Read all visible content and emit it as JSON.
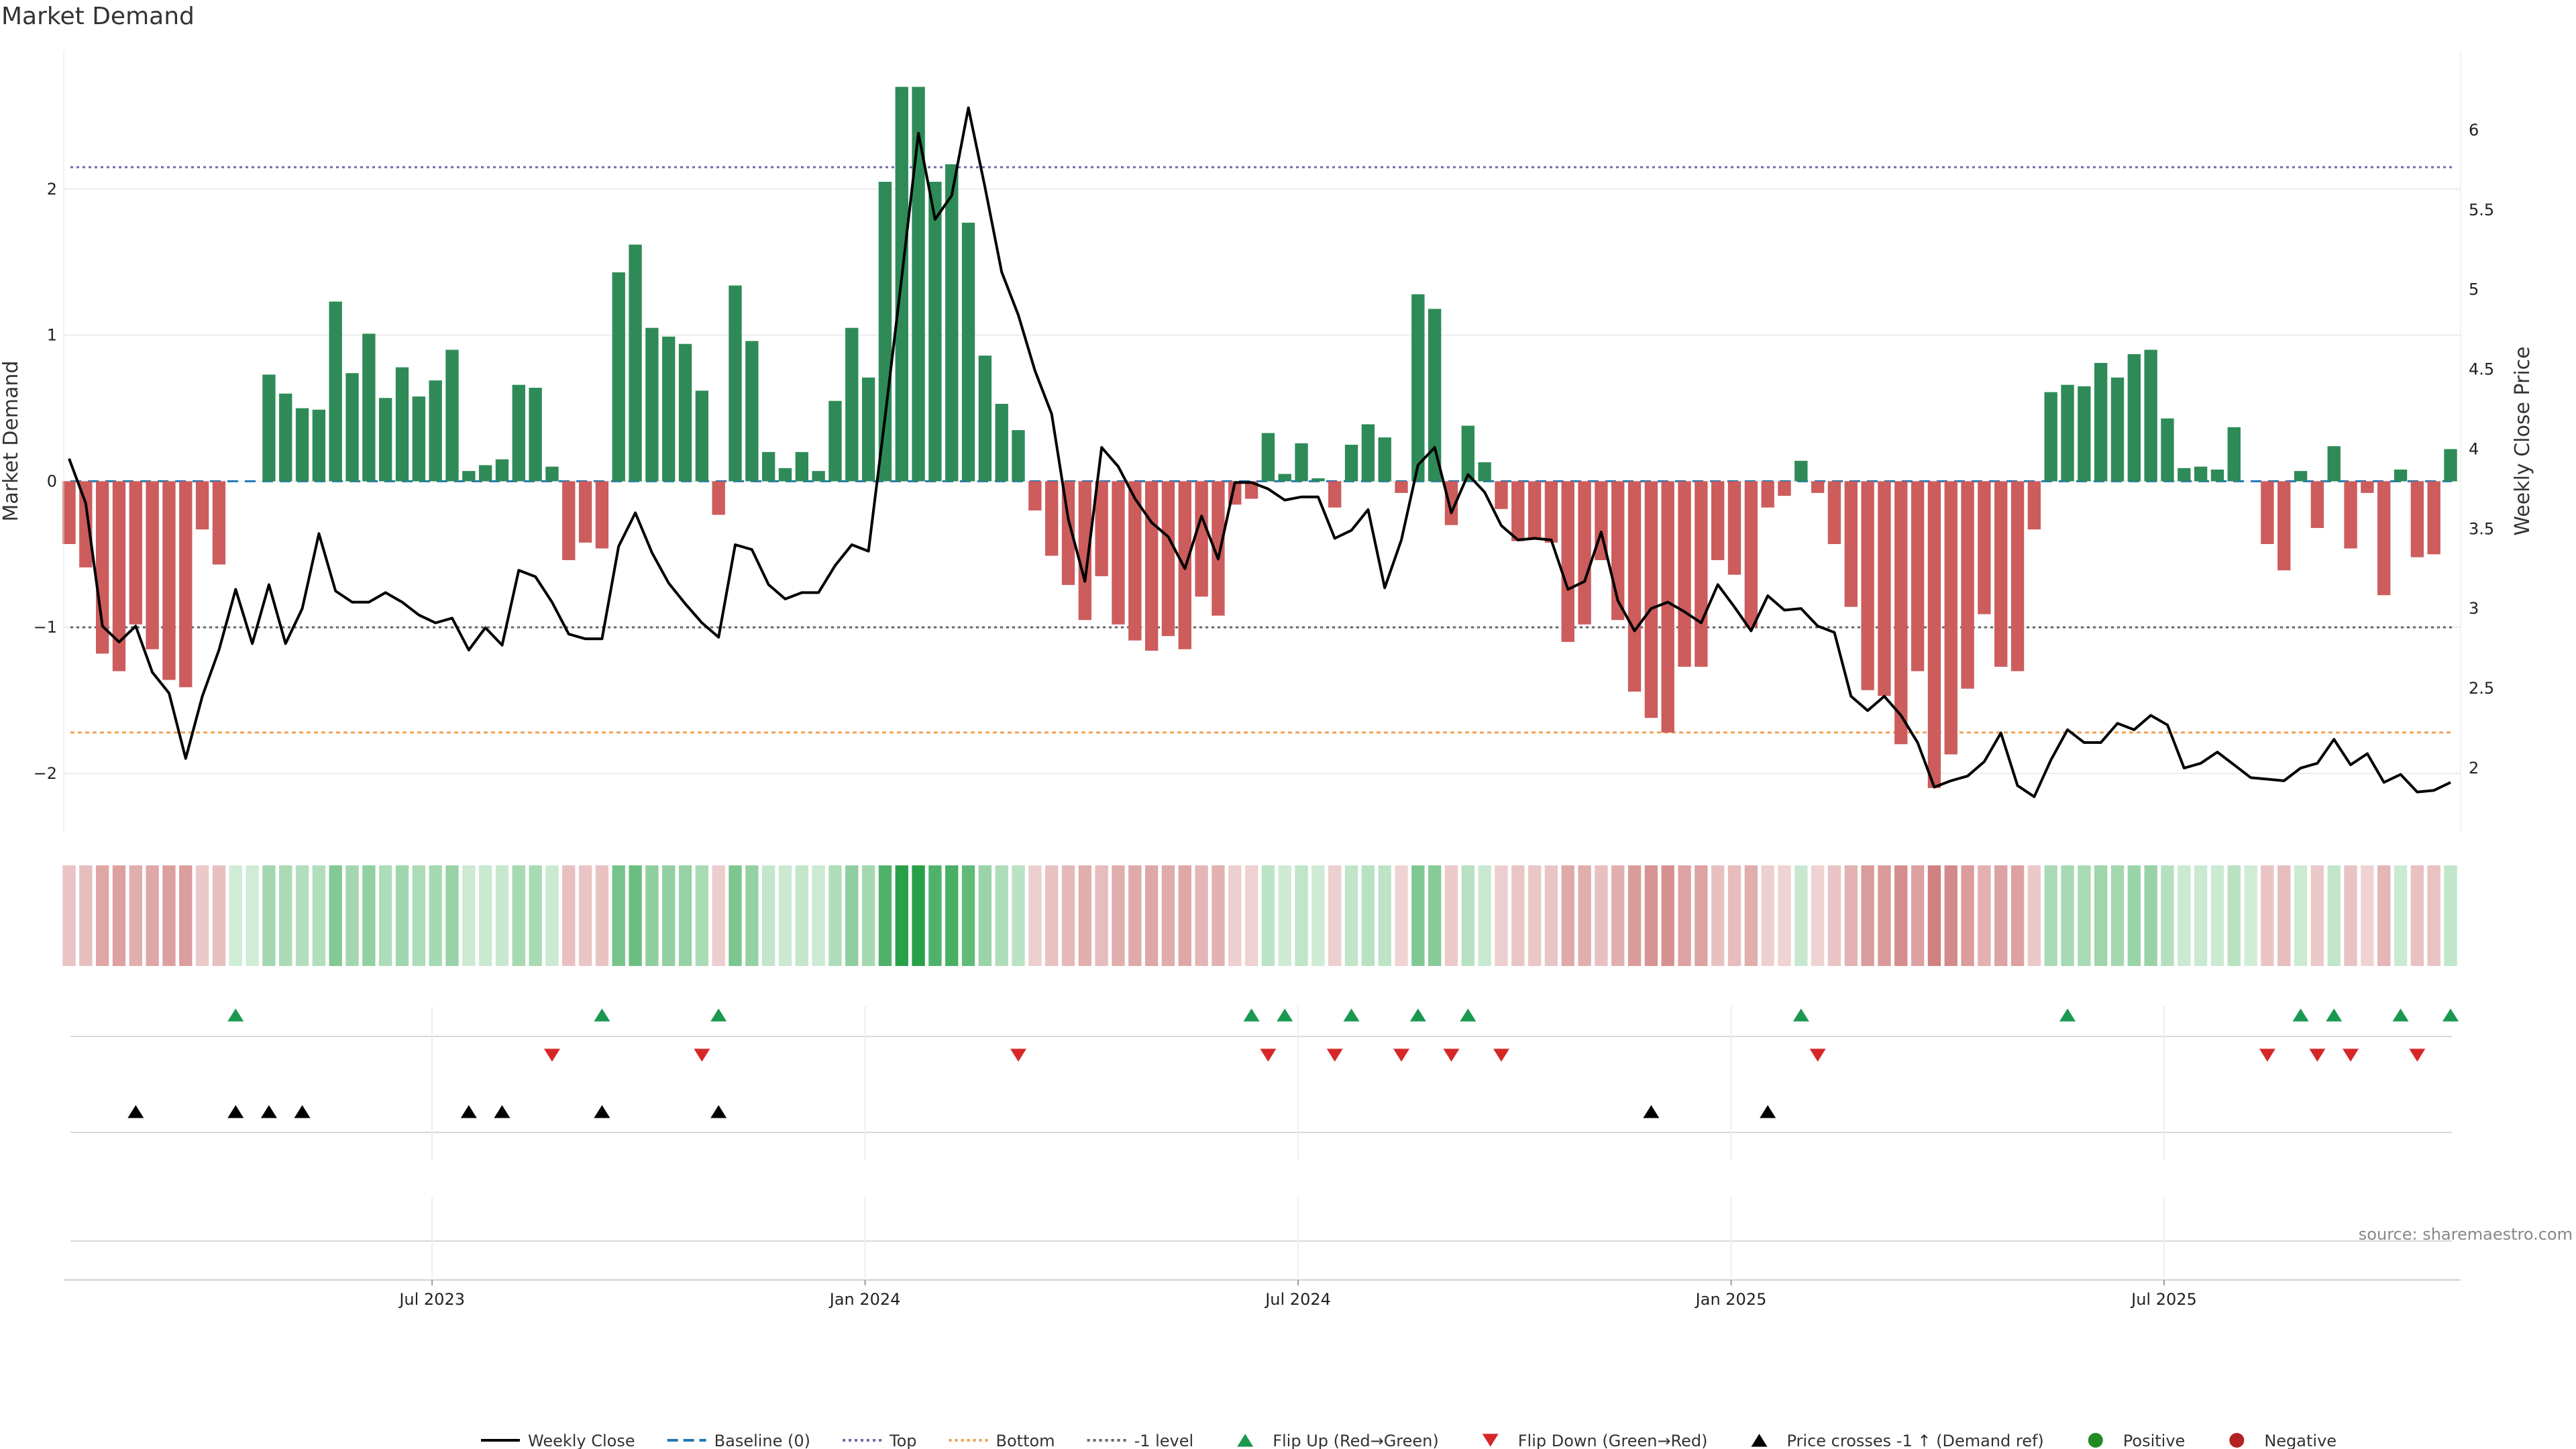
{
  "chart_data": {
    "type": "bar",
    "title": "Market Demand",
    "ylabel_left": "Market Demand",
    "ylabel_right": "Weekly Close Price",
    "ylim_left": [
      -2.4,
      2.95
    ],
    "ylim_right": [
      1.6,
      6.5
    ],
    "y_ticks_left": [
      {
        "value": 2,
        "label": "2"
      },
      {
        "value": 1,
        "label": "1"
      },
      {
        "value": 0,
        "label": "0"
      },
      {
        "value": -1,
        "label": "−1"
      },
      {
        "value": -2,
        "label": "−2"
      }
    ],
    "y_ticks_right": [
      {
        "value": 6,
        "label": "6"
      },
      {
        "value": 5.5,
        "label": "5.5"
      },
      {
        "value": 5,
        "label": "5"
      },
      {
        "value": 4.5,
        "label": "4.5"
      },
      {
        "value": 4,
        "label": "4"
      },
      {
        "value": 3.5,
        "label": "3.5"
      },
      {
        "value": 3,
        "label": "3"
      },
      {
        "value": 2.5,
        "label": "2.5"
      },
      {
        "value": 2,
        "label": "2"
      }
    ],
    "x_ticks": [
      {
        "index": 22,
        "label": "Jul 2023"
      },
      {
        "index": 48,
        "label": "Jan 2024"
      },
      {
        "index": 74,
        "label": "Jul 2024"
      },
      {
        "index": 100,
        "label": "Jan 2025"
      },
      {
        "index": 126,
        "label": "Jul 2025"
      }
    ],
    "reference_lines": {
      "top": 2.15,
      "bottom": -1.72,
      "minus_one": -1.0,
      "baseline": 0
    },
    "colors": {
      "positive": "#2e8b57",
      "negative": "#cd5c5c",
      "price": "#000000",
      "flip_up": "#1a9850",
      "flip_down": "#d62728",
      "cross": "#000000",
      "top_line": "#6b6bb0",
      "bottom_line": "#f0a050",
      "minus_one_line": "#666666",
      "baseline_line": "#1f77b4"
    },
    "demand": [
      -0.43,
      -0.59,
      -1.18,
      -1.3,
      -0.98,
      -1.15,
      -1.36,
      -1.41,
      -0.33,
      -0.57,
      0.0,
      0.0,
      0.73,
      0.6,
      0.5,
      0.49,
      1.23,
      0.74,
      1.01,
      0.57,
      0.78,
      0.58,
      0.69,
      0.9,
      0.07,
      0.11,
      0.15,
      0.66,
      0.64,
      0.1,
      -0.54,
      -0.42,
      -0.46,
      1.43,
      1.62,
      1.05,
      0.99,
      0.94,
      0.62,
      -0.23,
      1.34,
      0.96,
      0.2,
      0.09,
      0.2,
      0.07,
      0.55,
      1.05,
      0.71,
      2.05,
      2.7,
      2.7,
      2.05,
      2.17,
      1.77,
      0.86,
      0.53,
      0.35,
      -0.2,
      -0.51,
      -0.71,
      -0.95,
      -0.65,
      -0.98,
      -1.09,
      -1.16,
      -1.06,
      -1.15,
      -0.79,
      -0.92,
      -0.16,
      -0.12,
      0.33,
      0.05,
      0.26,
      0.02,
      -0.18,
      0.25,
      0.39,
      0.3,
      -0.08,
      1.28,
      1.18,
      -0.3,
      0.38,
      0.13,
      -0.19,
      -0.41,
      -0.4,
      -0.42,
      -1.1,
      -0.98,
      -0.54,
      -0.95,
      -1.44,
      -1.62,
      -1.72,
      -1.27,
      -1.27,
      -0.54,
      -0.64,
      -1.0,
      -0.18,
      -0.1,
      0.14,
      -0.08,
      -0.43,
      -0.86,
      -1.43,
      -1.47,
      -1.8,
      -1.3,
      -2.1,
      -1.87,
      -1.42,
      -0.91,
      -1.27,
      -1.3,
      -0.33,
      0.61,
      0.66,
      0.65,
      0.81,
      0.71,
      0.87,
      0.9,
      0.43,
      0.09,
      0.1,
      0.08,
      0.37,
      0.0,
      -0.43,
      -0.61,
      0.07,
      -0.32,
      0.24,
      -0.46,
      -0.08,
      -0.78,
      0.08,
      -0.52,
      -0.5,
      0.22
    ],
    "price": [
      3.94,
      3.66,
      2.89,
      2.79,
      2.89,
      2.6,
      2.47,
      2.06,
      2.45,
      2.74,
      3.12,
      2.78,
      3.15,
      2.78,
      3.0,
      3.47,
      3.11,
      3.04,
      3.04,
      3.1,
      3.04,
      2.96,
      2.91,
      2.94,
      2.74,
      2.88,
      2.77,
      3.24,
      3.2,
      3.04,
      2.84,
      2.81,
      2.81,
      3.39,
      3.6,
      3.35,
      3.16,
      3.03,
      2.91,
      2.82,
      3.4,
      3.37,
      3.15,
      3.06,
      3.1,
      3.1,
      3.27,
      3.4,
      3.36,
      4.2,
      5.08,
      5.98,
      5.44,
      5.59,
      6.14,
      5.64,
      5.11,
      4.84,
      4.49,
      4.22,
      3.56,
      3.17,
      4.01,
      3.89,
      3.69,
      3.54,
      3.45,
      3.25,
      3.58,
      3.31,
      3.79,
      3.79,
      3.75,
      3.68,
      3.7,
      3.7,
      3.44,
      3.49,
      3.62,
      3.13,
      3.43,
      3.9,
      4.01,
      3.6,
      3.84,
      3.73,
      3.52,
      3.43,
      3.44,
      3.43,
      3.12,
      3.17,
      3.48,
      3.05,
      2.86,
      3.0,
      3.04,
      2.98,
      2.91,
      3.15,
      3.01,
      2.86,
      3.08,
      2.99,
      3.0,
      2.89,
      2.85,
      2.45,
      2.36,
      2.45,
      2.33,
      2.16,
      1.88,
      1.92,
      1.95,
      2.04,
      2.22,
      1.89,
      1.82,
      2.05,
      2.24,
      2.16,
      2.16,
      2.28,
      2.24,
      2.33,
      2.27,
      2.0,
      2.03,
      2.1,
      2.02,
      1.94,
      1.93,
      1.92,
      2.0,
      2.03,
      2.18,
      2.02,
      2.09,
      1.91,
      1.96,
      1.85,
      1.86,
      1.91
    ],
    "flip_up_indices": [
      10,
      32,
      39,
      71,
      73,
      77,
      81,
      84,
      104,
      120,
      134,
      136,
      140,
      143
    ],
    "flip_down_indices": [
      29,
      38,
      57,
      72,
      76,
      80,
      83,
      86,
      105,
      132,
      135,
      137,
      141
    ],
    "cross_indices": [
      4,
      10,
      12,
      14,
      24,
      26,
      32,
      39,
      95,
      102
    ],
    "legend": [
      {
        "key": "price",
        "label": "Weekly Close",
        "kind": "solid"
      },
      {
        "key": "baseline_line",
        "label": "Baseline (0)",
        "kind": "dashed"
      },
      {
        "key": "top_line",
        "label": "Top",
        "kind": "dotted"
      },
      {
        "key": "bottom_line",
        "label": "Bottom",
        "kind": "dotted"
      },
      {
        "key": "minus_one_line",
        "label": "-1 level",
        "kind": "dotted"
      },
      {
        "key": "flip_up",
        "label": "Flip Up (Red→Green)",
        "kind": "tri-up"
      },
      {
        "key": "flip_down",
        "label": "Flip Down (Green→Red)",
        "kind": "tri-down"
      },
      {
        "key": "cross",
        "label": "Price crosses -1 ↑ (Demand ref)",
        "kind": "tri-up"
      },
      {
        "key": "positive_dot",
        "label": "Positive",
        "kind": "dot",
        "color": "#228b22"
      },
      {
        "key": "negative_dot",
        "label": "Negative",
        "kind": "dot",
        "color": "#b22222"
      }
    ],
    "source": "source: sharemaestro.com"
  }
}
